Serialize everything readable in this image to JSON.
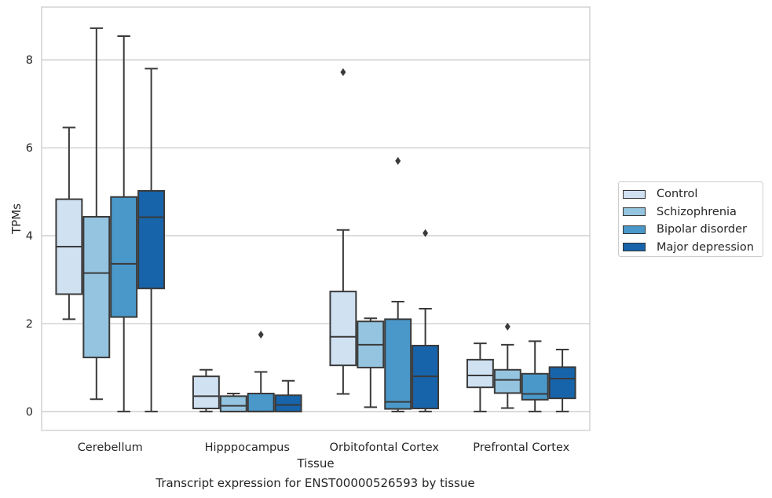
{
  "caption": "Transcript expression for ENST00000526593 by tissue",
  "colors": {
    "control": "#d0e1f2",
    "schizophrenia": "#94c4df",
    "bipolar": "#4a98c9",
    "depression": "#1764ab",
    "box_edge": "#3a3a3a",
    "grid": "#cccccc"
  },
  "chart_data": {
    "type": "boxplot",
    "xlabel": "Tissue",
    "ylabel": "TPMs",
    "ylim": [
      -0.43,
      9.2
    ],
    "yticks": [
      0,
      2,
      4,
      6,
      8
    ],
    "grid": "horizontal",
    "legend_position": "right",
    "categories": [
      "Cerebellum",
      "Hipppocampus",
      "Orbitofontal Cortex",
      "Prefrontal Cortex"
    ],
    "series": [
      {
        "name": "Control",
        "boxes": [
          {
            "whislo": 2.1,
            "q1": 2.67,
            "med": 3.75,
            "q3": 4.83,
            "whishi": 6.46,
            "fliers": []
          },
          {
            "whislo": 0.0,
            "q1": 0.07,
            "med": 0.35,
            "q3": 0.8,
            "whishi": 0.95,
            "fliers": []
          },
          {
            "whislo": 0.4,
            "q1": 1.05,
            "med": 1.7,
            "q3": 2.73,
            "whishi": 4.13,
            "fliers": [
              7.72
            ]
          },
          {
            "whislo": 0.0,
            "q1": 0.55,
            "med": 0.82,
            "q3": 1.18,
            "whishi": 1.55,
            "fliers": []
          }
        ]
      },
      {
        "name": "Schizophrenia",
        "boxes": [
          {
            "whislo": 0.28,
            "q1": 1.23,
            "med": 3.15,
            "q3": 4.43,
            "whishi": 8.72,
            "fliers": []
          },
          {
            "whislo": 0.0,
            "q1": 0.0,
            "med": 0.13,
            "q3": 0.35,
            "whishi": 0.41,
            "fliers": []
          },
          {
            "whislo": 0.1,
            "q1": 1.0,
            "med": 1.52,
            "q3": 2.05,
            "whishi": 2.12,
            "fliers": []
          },
          {
            "whislo": 0.08,
            "q1": 0.42,
            "med": 0.72,
            "q3": 0.95,
            "whishi": 1.52,
            "fliers": [
              1.93
            ]
          }
        ]
      },
      {
        "name": "Bipolar disorder",
        "boxes": [
          {
            "whislo": 0.0,
            "q1": 2.15,
            "med": 3.36,
            "q3": 4.88,
            "whishi": 8.54,
            "fliers": []
          },
          {
            "whislo": 0.0,
            "q1": 0.0,
            "med": 0.0,
            "q3": 0.41,
            "whishi": 0.9,
            "fliers": [
              1.75
            ]
          },
          {
            "whislo": 0.0,
            "q1": 0.06,
            "med": 0.22,
            "q3": 2.1,
            "whishi": 2.5,
            "fliers": [
              5.7
            ]
          },
          {
            "whislo": 0.0,
            "q1": 0.27,
            "med": 0.4,
            "q3": 0.86,
            "whishi": 1.6,
            "fliers": []
          }
        ]
      },
      {
        "name": "Major depression",
        "boxes": [
          {
            "whislo": 0.0,
            "q1": 2.8,
            "med": 4.42,
            "q3": 5.02,
            "whishi": 7.8,
            "fliers": []
          },
          {
            "whislo": 0.0,
            "q1": 0.0,
            "med": 0.15,
            "q3": 0.37,
            "whishi": 0.7,
            "fliers": []
          },
          {
            "whislo": 0.0,
            "q1": 0.07,
            "med": 0.8,
            "q3": 1.5,
            "whishi": 2.34,
            "fliers": [
              4.06
            ]
          },
          {
            "whislo": 0.0,
            "q1": 0.3,
            "med": 0.75,
            "q3": 1.01,
            "whishi": 1.41,
            "fliers": []
          }
        ]
      }
    ]
  }
}
